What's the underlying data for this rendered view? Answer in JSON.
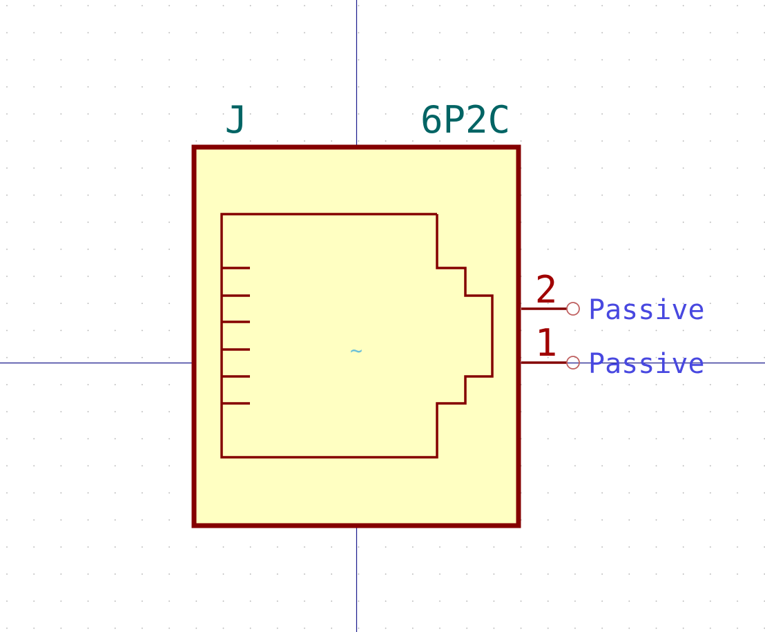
{
  "symbol": {
    "reference": "J",
    "value": "6P2C",
    "center_glyph": "~"
  },
  "pins": [
    {
      "number": "2",
      "type": "Passive"
    },
    {
      "number": "1",
      "type": "Passive"
    }
  ],
  "colors": {
    "body_outline": "#840000",
    "body_fill": "#ffffc2",
    "field_text": "#006464",
    "pin_type_text": "#4848e0",
    "axis": "#1a1a8c",
    "center_glyph": "#6cc0d8"
  }
}
